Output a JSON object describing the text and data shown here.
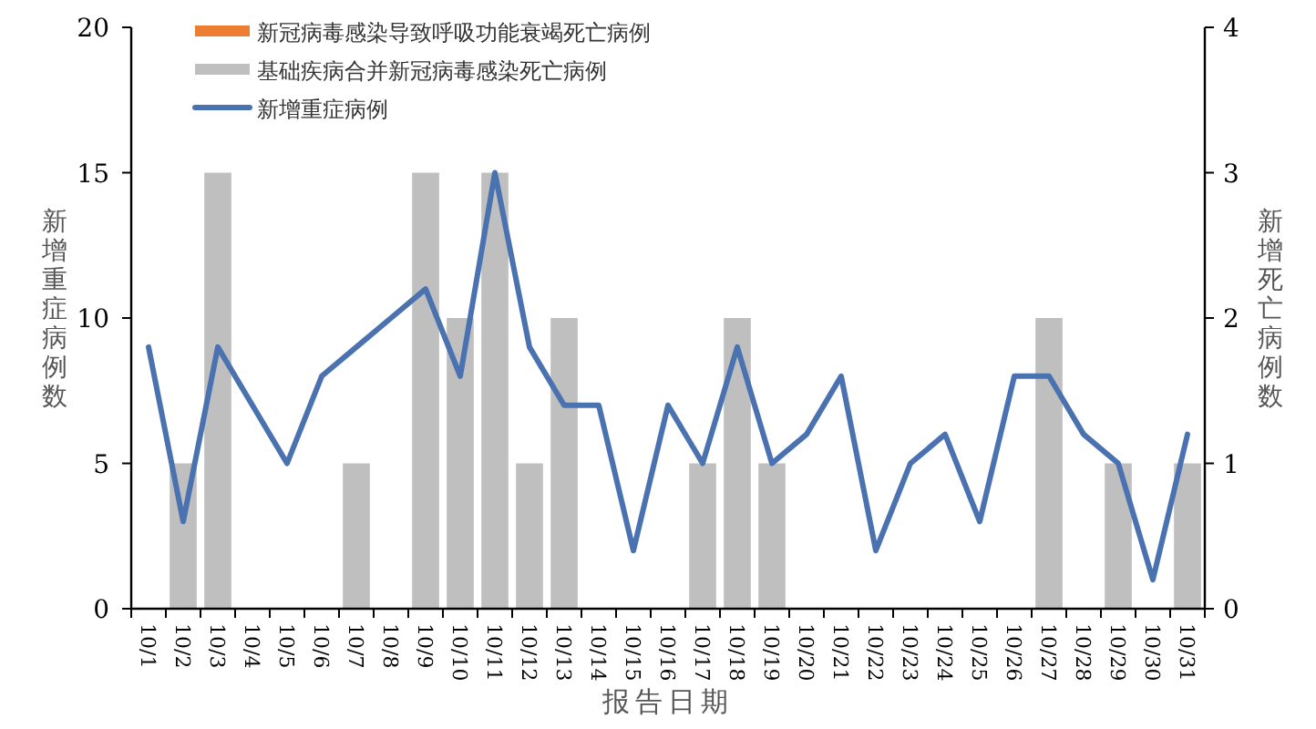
{
  "chart_data": {
    "type": "bar",
    "categories": [
      "10/1",
      "10/2",
      "10/3",
      "10/4",
      "10/5",
      "10/6",
      "10/7",
      "10/8",
      "10/9",
      "10/10",
      "10/11",
      "10/12",
      "10/13",
      "10/14",
      "10/15",
      "10/16",
      "10/17",
      "10/18",
      "10/19",
      "10/20",
      "10/21",
      "10/22",
      "10/23",
      "10/24",
      "10/25",
      "10/26",
      "10/27",
      "10/28",
      "10/29",
      "10/30",
      "10/31"
    ],
    "series": [
      {
        "name": "新冠病毒感染导致呼吸功能衰竭死亡病例",
        "axis": "y2",
        "color": "#ed7d31",
        "values": [
          0,
          0,
          0,
          0,
          0,
          0,
          0,
          0,
          0,
          0,
          0,
          0,
          0,
          0,
          0,
          0,
          0,
          0,
          0,
          0,
          0,
          0,
          0,
          0,
          0,
          0,
          0,
          0,
          0,
          0,
          0
        ]
      },
      {
        "name": "基础疾病合并新冠病毒感染死亡病例",
        "axis": "y2",
        "color": "#bfbfbf",
        "values": [
          0,
          1,
          3,
          0,
          0,
          0,
          1,
          0,
          3,
          2,
          3,
          1,
          2,
          0,
          0,
          0,
          1,
          2,
          1,
          0,
          0,
          0,
          0,
          0,
          0,
          0,
          2,
          0,
          1,
          0,
          1
        ]
      },
      {
        "name": "新增重症病例",
        "type": "line",
        "axis": "y",
        "color": "#4a72b0",
        "values": [
          9,
          3,
          9,
          7,
          5,
          8,
          9,
          10,
          11,
          8,
          15,
          9,
          7,
          7,
          2,
          7,
          5,
          9,
          5,
          6,
          8,
          2,
          5,
          6,
          3,
          8,
          8,
          6,
          5,
          1,
          6
        ]
      }
    ],
    "xlabel": "报告日期",
    "ylabel": "新增重症病例数",
    "y2label": "新增死亡病例数",
    "ylim": [
      0,
      20
    ],
    "yticks": [
      0,
      5,
      10,
      15,
      20
    ],
    "y2lim": [
      0,
      4
    ],
    "y2ticks": [
      0,
      1,
      2,
      3,
      4
    ],
    "legend": "top left",
    "grid": false
  }
}
